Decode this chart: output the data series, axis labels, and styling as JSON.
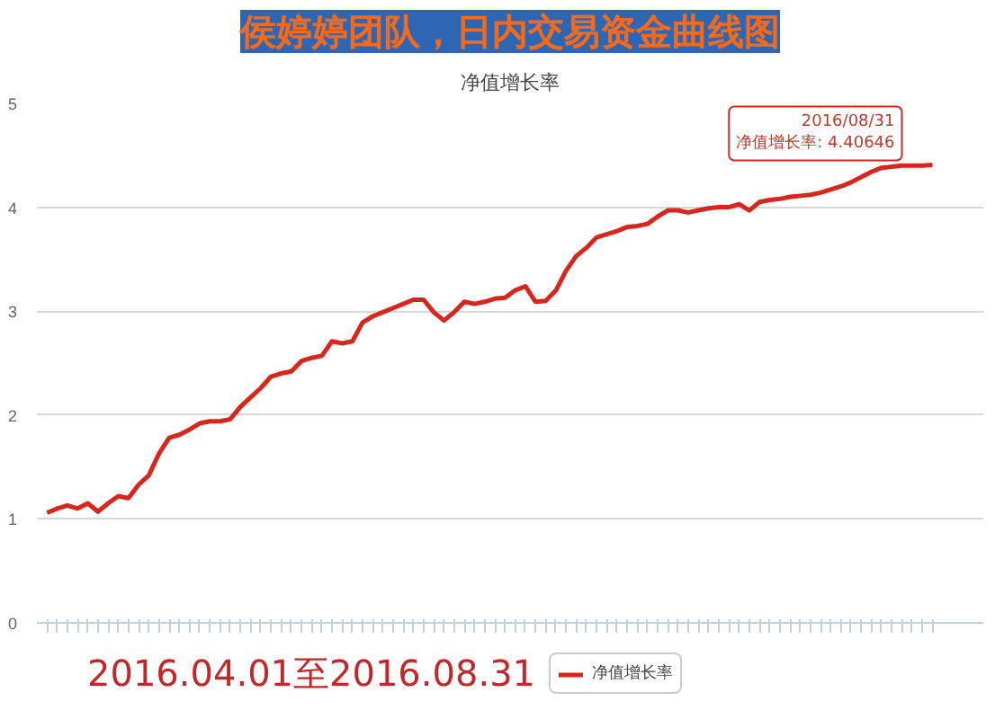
{
  "chart_data": {
    "type": "line",
    "title": "侯婷婷团队，日内交易资金曲线图",
    "subtitle": "净值增长率",
    "categories": [
      null,
      null,
      null,
      null,
      null,
      null,
      null,
      null,
      null,
      null,
      null,
      null,
      null,
      null,
      null,
      null,
      null,
      null,
      null,
      null,
      null,
      null,
      null,
      null,
      null,
      null,
      null,
      null,
      null,
      null,
      null,
      null,
      null,
      null,
      null,
      null,
      null,
      null,
      null,
      null,
      null,
      null,
      null,
      null,
      null,
      null,
      null,
      null,
      null,
      null,
      null,
      null,
      null,
      null,
      null,
      null,
      null,
      null,
      null,
      null,
      null,
      null,
      null,
      null,
      null,
      null,
      null,
      null,
      null,
      null,
      null,
      null,
      null,
      null,
      null,
      null,
      null,
      null,
      null,
      null,
      null,
      null,
      null,
      null,
      null,
      null,
      null,
      null
    ],
    "series": [
      {
        "name": "净值增长率",
        "color": "#d9261c",
        "values": [
          1.06,
          1.1,
          1.13,
          1.1,
          1.15,
          1.07,
          1.15,
          1.22,
          1.2,
          1.33,
          1.42,
          1.63,
          1.78,
          1.81,
          1.86,
          1.92,
          1.94,
          1.94,
          1.96,
          2.08,
          2.17,
          2.26,
          2.37,
          2.4,
          2.42,
          2.52,
          2.55,
          2.57,
          2.71,
          2.69,
          2.71,
          2.89,
          2.95,
          2.99,
          3.03,
          3.07,
          3.11,
          3.11,
          2.99,
          2.91,
          2.99,
          3.09,
          3.07,
          3.09,
          3.12,
          3.13,
          3.2,
          3.24,
          3.09,
          3.1,
          3.2,
          3.39,
          3.53,
          3.61,
          3.71,
          3.74,
          3.77,
          3.81,
          3.82,
          3.84,
          3.91,
          3.97,
          3.97,
          3.95,
          3.97,
          3.99,
          4.0,
          4.0,
          4.03,
          3.97,
          4.05,
          4.07,
          4.08,
          4.1,
          4.11,
          4.12,
          4.14,
          4.17,
          4.2,
          4.24,
          4.29,
          4.34,
          4.38,
          4.39,
          4.4,
          4.4,
          4.4,
          4.40646
        ]
      }
    ],
    "ylim": [
      0,
      5
    ],
    "yticks": [
      0,
      1,
      2,
      3,
      4,
      5
    ],
    "grid": "y",
    "legend": "bottom",
    "tick_labels": "y",
    "marker": "none",
    "line_style": "solid",
    "annotations": [
      "2016/08/31\n净值增长率: 4.40646",
      "2016.04.01至2016.08.31"
    ]
  }
}
